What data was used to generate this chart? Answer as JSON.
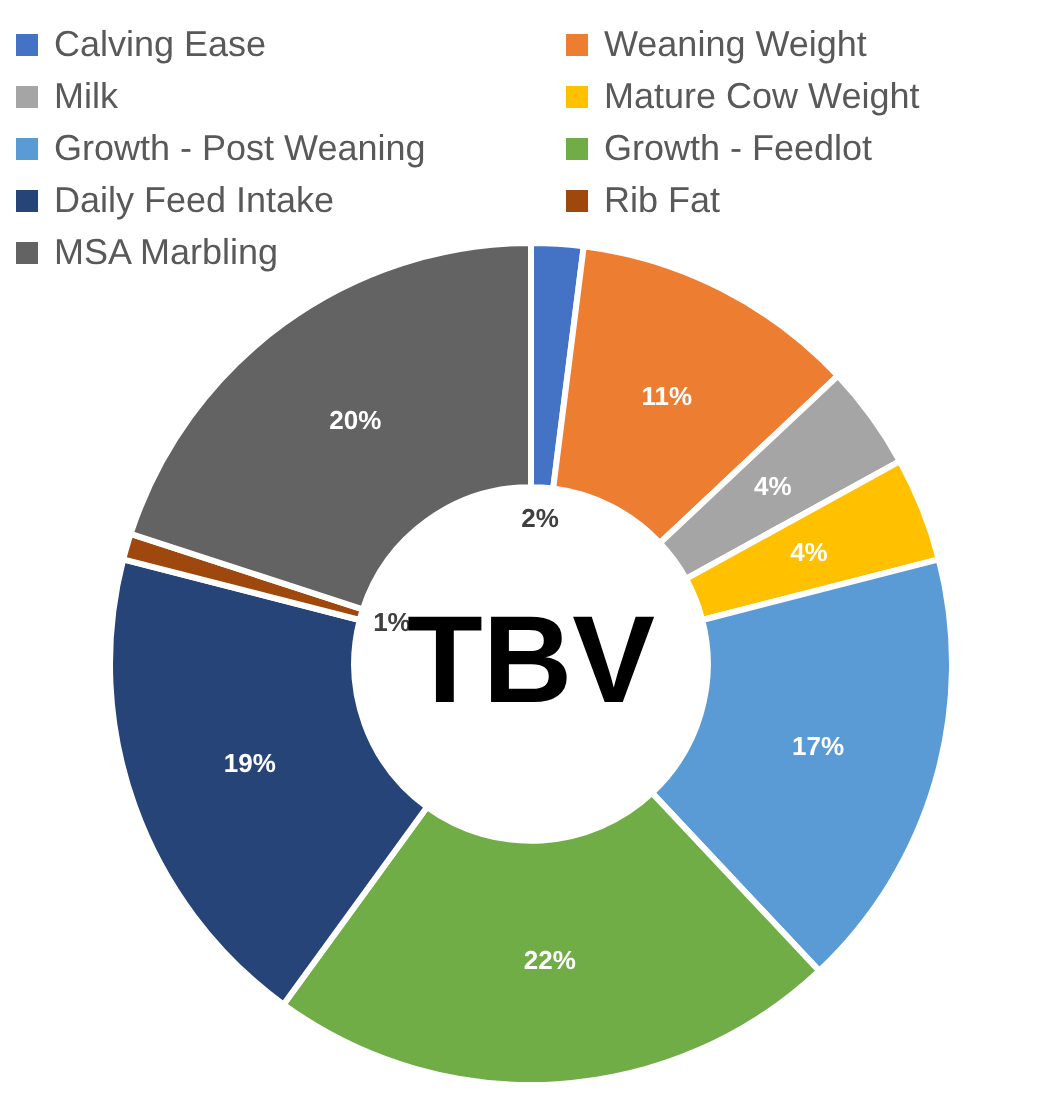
{
  "chart_data": {
    "type": "donut",
    "title": "TBV",
    "categories": [
      "Calving Ease",
      "Weaning Weight",
      "Milk",
      "Mature Cow Weight",
      "Growth - Post Weaning",
      "Growth - Feedlot",
      "Daily Feed Intake",
      "Rib Fat",
      "MSA Marbling"
    ],
    "values": [
      2,
      11,
      4,
      4,
      17,
      22,
      19,
      1,
      20
    ],
    "colors": [
      "#4472c4",
      "#ed7d31",
      "#a5a5a5",
      "#ffc000",
      "#5b9bd5",
      "#70ad47",
      "#264478",
      "#9e480e",
      "#636363"
    ],
    "value_labels": [
      "2%",
      "11%",
      "4%",
      "4%",
      "17%",
      "22%",
      "19%",
      "1%",
      "20%"
    ],
    "legend": "top"
  }
}
